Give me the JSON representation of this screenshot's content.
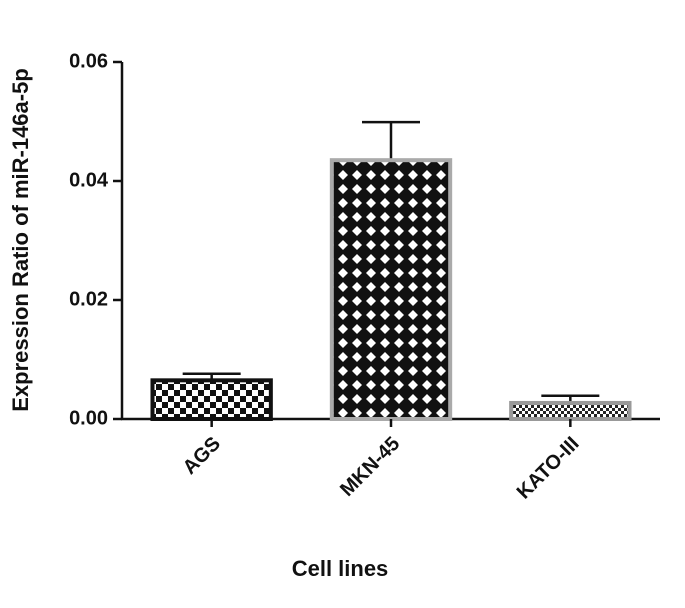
{
  "chart_data": {
    "type": "bar",
    "y_label": "Expression Ratio of miR-146a-5p",
    "x_label": "Cell lines",
    "categories": [
      "AGS",
      "MKN-45",
      "KATO-III"
    ],
    "values": [
      0.0065,
      0.0435,
      0.0027
    ],
    "errors": [
      0.0011,
      0.0064,
      0.0012
    ],
    "ylim": [
      0,
      0.06
    ],
    "yticks": [
      {
        "value": 0,
        "label": "0.00"
      },
      {
        "value": 0.02,
        "label": "0.02"
      },
      {
        "value": 0.04,
        "label": "0.04"
      },
      {
        "value": 0.06,
        "label": "0.06"
      }
    ]
  }
}
